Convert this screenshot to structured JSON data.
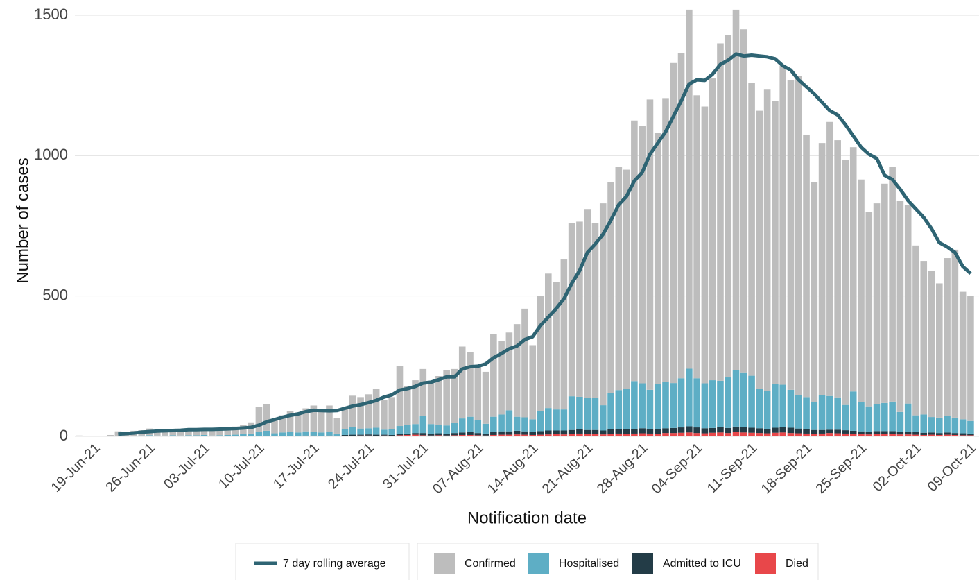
{
  "chart_data": {
    "type": "bar",
    "stacked": true,
    "x_label": "Notification date",
    "y_label": "Number of cases",
    "ylim": [
      0,
      1500
    ],
    "yticks": [
      0,
      500,
      1000,
      1500
    ],
    "grid": true,
    "legend": "bottom",
    "categories": [
      null,
      null,
      "19-Jun-21",
      null,
      null,
      null,
      null,
      null,
      null,
      "26-Jun-21",
      null,
      null,
      null,
      null,
      null,
      null,
      "03-Jul-21",
      null,
      null,
      null,
      null,
      null,
      null,
      "10-Jul-21",
      null,
      null,
      null,
      null,
      null,
      null,
      "17-Jul-21",
      null,
      null,
      null,
      null,
      null,
      null,
      "24-Jul-21",
      null,
      null,
      null,
      null,
      null,
      null,
      "31-Jul-21",
      null,
      null,
      null,
      null,
      null,
      null,
      "07-Aug-21",
      null,
      null,
      null,
      null,
      null,
      null,
      "14-Aug-21",
      null,
      null,
      null,
      null,
      null,
      null,
      "21-Aug-21",
      null,
      null,
      null,
      null,
      null,
      null,
      "28-Aug-21",
      null,
      null,
      null,
      null,
      null,
      null,
      "04-Sep-21",
      null,
      null,
      null,
      null,
      null,
      null,
      "11-Sep-21",
      null,
      null,
      null,
      null,
      null,
      null,
      "18-Sep-21",
      null,
      null,
      null,
      null,
      null,
      null,
      "25-Sep-21",
      null,
      null,
      null,
      null,
      null,
      null,
      "02-Oct-21",
      null,
      null,
      null,
      null,
      null,
      null,
      "09-Oct-21"
    ],
    "series": [
      {
        "name": "Confirmed",
        "color": "#bdbdbd",
        "values": [
          3,
          1,
          0,
          2,
          5,
          16,
          11,
          18,
          19,
          24,
          17,
          19,
          21,
          19,
          24,
          21,
          25,
          19,
          24,
          25,
          29,
          32,
          40,
          88,
          95,
          49,
          61,
          74,
          71,
          82,
          93,
          81,
          94,
          55,
          80,
          111,
          112,
          121,
          139,
          106,
          113,
          213,
          140,
          156,
          168,
          146,
          174,
          196,
          193,
          256,
          230,
          193,
          185,
          295,
          262,
          277,
          330,
          387,
          264,
          411,
          479,
          454,
          534,
          617,
          624,
          672,
          622,
          719,
          750,
          795,
          780,
          928,
          916,
          1034,
          893,
          1011,
          1140,
          1158,
          1279,
          1008,
          986,
          1075,
          1202,
          1220,
          1285,
          1222,
          1044,
          991,
          1073,
          1009,
          1136,
          1104,
          1137,
          935,
          782,
          897,
          976,
          916,
          873,
          870,
          792,
          693,
          716,
          781,
          836,
          753,
          708,
          605,
          547,
          521,
          478,
          561,
          598,
          454,
          445
        ]
      },
      {
        "name": "Hospitalised",
        "color": "#5eaec5",
        "values": [
          0,
          0,
          0,
          0,
          0,
          2,
          1,
          2,
          3,
          4,
          3,
          3,
          4,
          3,
          4,
          4,
          5,
          3,
          4,
          5,
          6,
          8,
          10,
          15,
          18,
          10,
          12,
          14,
          12,
          15,
          14,
          12,
          13,
          8,
          20,
          28,
          22,
          22,
          25,
          18,
          22,
          28,
          30,
          32,
          60,
          35,
          30,
          30,
          35,
          50,
          55,
          45,
          35,
          55,
          60,
          75,
          50,
          50,
          45,
          70,
          80,
          75,
          75,
          120,
          115,
          115,
          115,
          90,
          130,
          140,
          145,
          170,
          160,
          140,
          160,
          165,
          160,
          175,
          205,
          175,
          160,
          170,
          165,
          180,
          200,
          195,
          185,
          140,
          135,
          155,
          150,
          135,
          120,
          115,
          100,
          125,
          120,
          115,
          90,
          140,
          105,
          90,
          95,
          100,
          105,
          70,
          100,
          60,
          65,
          55,
          55,
          60,
          55,
          50,
          45
        ]
      },
      {
        "name": "Admitted to ICU",
        "color": "#233c47",
        "values": [
          0,
          0,
          0,
          0,
          0,
          0,
          0,
          0,
          0,
          0,
          0,
          0,
          0,
          0,
          0,
          0,
          0,
          0,
          0,
          0,
          0,
          0,
          0,
          2,
          2,
          1,
          2,
          2,
          2,
          3,
          3,
          2,
          3,
          2,
          3,
          4,
          3,
          4,
          4,
          3,
          3,
          5,
          5,
          6,
          8,
          6,
          7,
          6,
          8,
          9,
          10,
          8,
          7,
          10,
          12,
          12,
          13,
          12,
          11,
          13,
          14,
          13,
          14,
          15,
          16,
          14,
          15,
          14,
          16,
          15,
          16,
          17,
          18,
          16,
          18,
          17,
          18,
          19,
          22,
          20,
          18,
          17,
          19,
          18,
          20,
          19,
          18,
          17,
          16,
          18,
          20,
          19,
          17,
          15,
          14,
          13,
          12,
          13,
          12,
          11,
          10,
          10,
          11,
          10,
          11,
          10,
          10,
          9,
          8,
          8,
          7,
          8,
          7,
          7,
          6
        ]
      },
      {
        "name": "Died",
        "color": "#e8474a",
        "values": [
          0,
          0,
          0,
          0,
          0,
          0,
          0,
          0,
          0,
          0,
          0,
          0,
          0,
          0,
          0,
          0,
          0,
          0,
          0,
          0,
          0,
          0,
          0,
          0,
          0,
          0,
          0,
          0,
          0,
          0,
          0,
          0,
          0,
          0,
          2,
          2,
          3,
          3,
          2,
          3,
          2,
          4,
          5,
          6,
          4,
          3,
          4,
          3,
          4,
          5,
          5,
          4,
          3,
          5,
          6,
          6,
          7,
          6,
          5,
          6,
          7,
          8,
          7,
          8,
          10,
          9,
          8,
          7,
          9,
          10,
          9,
          10,
          11,
          10,
          9,
          12,
          12,
          13,
          14,
          12,
          11,
          13,
          14,
          12,
          15,
          14,
          13,
          12,
          11,
          13,
          14,
          12,
          11,
          10,
          9,
          10,
          12,
          11,
          10,
          9,
          8,
          7,
          8,
          9,
          8,
          7,
          7,
          6,
          5,
          6,
          5,
          6,
          5,
          4,
          4
        ]
      },
      {
        "name": "7 day rolling average",
        "type": "line",
        "color": "#2e6473",
        "values": [
          null,
          null,
          null,
          null,
          null,
          8,
          10,
          12,
          15,
          17,
          19,
          20,
          21,
          22,
          24,
          24,
          25,
          25,
          26,
          27,
          28,
          30,
          32,
          40,
          52,
          60,
          68,
          75,
          80,
          88,
          93,
          92,
          91,
          92,
          100,
          108,
          113,
          120,
          128,
          140,
          148,
          165,
          170,
          178,
          190,
          193,
          202,
          212,
          212,
          240,
          248,
          250,
          258,
          280,
          295,
          312,
          322,
          345,
          355,
          395,
          425,
          455,
          490,
          545,
          590,
          655,
          685,
          720,
          770,
          825,
          855,
          910,
          940,
          1005,
          1045,
          1085,
          1140,
          1195,
          1255,
          1270,
          1268,
          1290,
          1325,
          1340,
          1362,
          1355,
          1358,
          1355,
          1352,
          1345,
          1320,
          1305,
          1270,
          1245,
          1220,
          1190,
          1160,
          1145,
          1110,
          1070,
          1030,
          1005,
          990,
          930,
          915,
          880,
          840,
          810,
          780,
          740,
          690,
          675,
          655,
          605,
          580
        ]
      }
    ]
  }
}
